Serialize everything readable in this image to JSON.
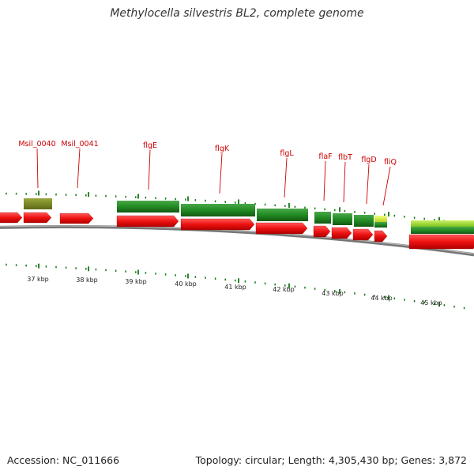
{
  "title": "Methylocella silvestris BL2, complete genome",
  "footer": {
    "accession": "Accession: NC_011666",
    "summary": "Topology: circular; Length: 4,305,430 bp; Genes: 3,872"
  },
  "gene_labels": [
    "Msil_0040",
    "Msil_0041",
    "flgE",
    "flgK",
    "flgL",
    "flaF",
    "flbT",
    "flgD",
    "fliQ"
  ],
  "kbp_labels": [
    "37 kbp",
    "38 kbp",
    "39 kbp",
    "40 kbp",
    "41 kbp",
    "42 kbp",
    "43 kbp",
    "44 kbp",
    "45 kbp"
  ],
  "colors": {
    "cds": "#ee1111",
    "highlight_gene": "#228b22",
    "olive_gene": "#7a8a22",
    "yellow_gene": "#d8ee44",
    "light_gene": "#99dd33",
    "backbone": "#888888",
    "label": "#cc0000",
    "tick": "#117711"
  }
}
